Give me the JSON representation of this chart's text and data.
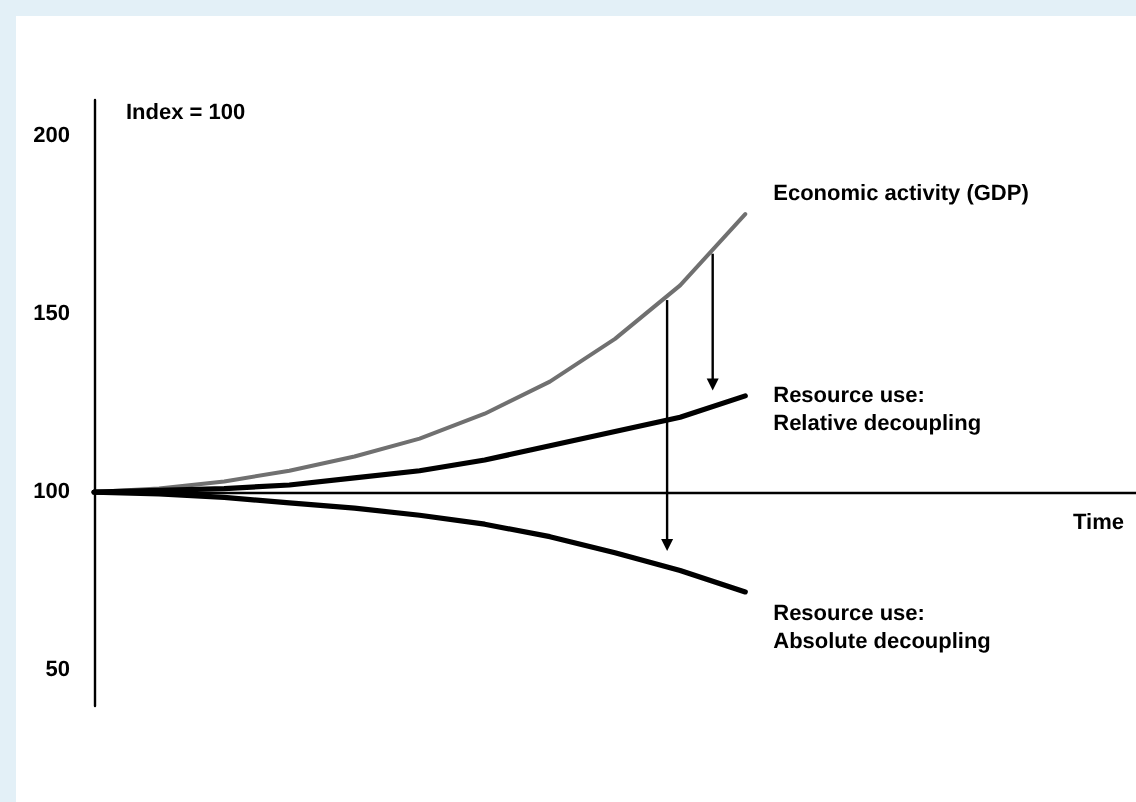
{
  "chart_data": {
    "type": "line",
    "ylabel": "Index = 100",
    "xlabel": "Time",
    "categories": [
      null,
      null,
      null,
      null,
      null,
      null,
      null,
      null,
      null,
      null,
      null,
      null,
      null,
      null,
      null,
      null,
      null
    ],
    "ylim": [
      40,
      210
    ],
    "yticks": [
      50,
      100,
      150,
      200
    ],
    "tick_labels": "y",
    "grid": false,
    "legend": false,
    "marker": "none",
    "line_style": "solid",
    "ref_lines": [
      {
        "axis": "y",
        "value": 100,
        "color": "#000000"
      }
    ],
    "series": [
      {
        "name": "Economic activity (GDP)",
        "color": "#707070",
        "values": [
          100,
          101,
          103,
          106,
          110,
          115,
          122,
          131,
          143,
          158,
          178,
          null,
          null,
          null,
          null,
          null,
          null
        ]
      },
      {
        "name": "Resource use:\nRelative decoupling",
        "color": "#000000",
        "values": [
          100,
          100.5,
          101,
          102,
          104,
          106,
          109,
          113,
          117,
          121,
          127,
          null,
          null,
          null,
          null,
          null,
          null
        ]
      },
      {
        "name": "Resource use:\nAbsolute decoupling",
        "color": "#000000",
        "values": [
          100,
          99.5,
          98.5,
          97,
          95.5,
          93.5,
          91,
          87.5,
          83,
          78,
          72,
          null,
          null,
          null,
          null,
          null,
          null
        ]
      }
    ]
  }
}
